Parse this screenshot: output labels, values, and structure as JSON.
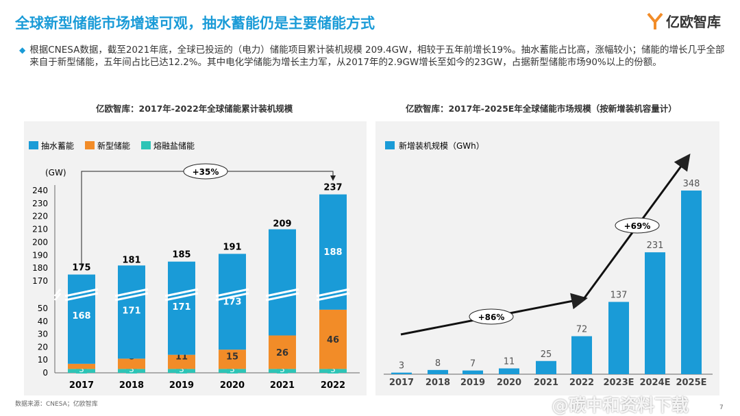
{
  "title": "全球新型储能市场增速可观，抽水蓄能仍是主要储能方式",
  "logo": {
    "text": "亿欧智库"
  },
  "bullet": "根据CNESA数据，截至2021年底，全球已投运的（电力）储能项目累计装机规模 209.4GW，相较于五年前增长19%。抽水蓄能占比高，涨幅较小；储能的增长几乎全部来自于新型储能，五年间占比已达12.2%。其中电化学储能为增长主力军，从2017年的2.9GW增长至如今的23GW，占据新型储能市场90%以上的份额。",
  "source": "数据来源：CNESA；亿欧智库",
  "page_number": "7",
  "watermark": "@碳中和资料下载",
  "chart_data": [
    {
      "type": "bar",
      "stacked": true,
      "title": "亿欧智库：2017年-2022年全球储能累计装机规模",
      "ylabel": "(GW)",
      "categories": [
        "2017",
        "2018",
        "2019",
        "2020",
        "2021",
        "2022"
      ],
      "series": [
        {
          "name": "熔融盐储能",
          "color": "#2ec4b6",
          "values": [
            3,
            3,
            3,
            3,
            3,
            3
          ]
        },
        {
          "name": "新型储能",
          "color": "#f28c28",
          "values": [
            4,
            8,
            11,
            15,
            26,
            46
          ]
        },
        {
          "name": "抽水蓄能",
          "color": "#1a9bd7",
          "values": [
            168,
            171,
            171,
            173,
            181,
            188
          ]
        }
      ],
      "totals": [
        175,
        181,
        185,
        191,
        209,
        237
      ],
      "yticks_lower": [
        0,
        10,
        20,
        30,
        40,
        50
      ],
      "yticks_upper": [
        170,
        180,
        190,
        200,
        210,
        220,
        230,
        240
      ],
      "axis_break": true,
      "legend": "top-left",
      "annotation": {
        "text": "+35%",
        "from": "2017",
        "to": "2022"
      }
    },
    {
      "type": "bar",
      "title": "亿欧智库：2017年-2025E年全球储能市场规模（按新增装机容量计）",
      "categories": [
        "2017",
        "2018",
        "2019",
        "2020",
        "2021",
        "2022",
        "2023E",
        "2024E",
        "2025E"
      ],
      "series": [
        {
          "name": "新增装机规模（GWh）",
          "color": "#1a9bd7",
          "values": [
            3,
            8,
            7,
            11,
            25,
            72,
            137,
            231,
            348
          ]
        }
      ],
      "legend": "top-left",
      "annotations": [
        {
          "text": "+86%",
          "from": "2017",
          "to": "2022"
        },
        {
          "text": "+69%",
          "from": "2022",
          "to": "2025E"
        }
      ]
    }
  ]
}
